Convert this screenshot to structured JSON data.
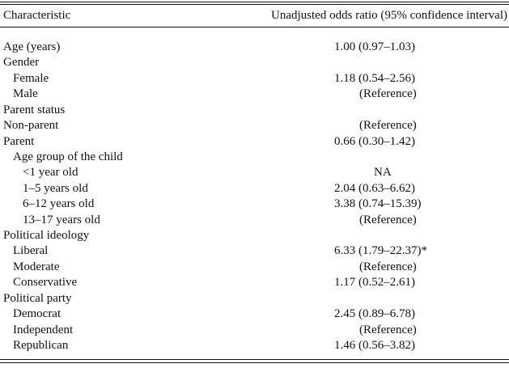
{
  "table": {
    "header": [
      "Characteristic",
      "Unadjusted odds ratio (95% confidence interval)"
    ],
    "rows": [
      [
        "Age (years)",
        "1.00 (0.97–1.03)"
      ],
      [
        "Gender",
        null
      ],
      [
        "Female",
        "1.18 (0.54–2.56)"
      ],
      [
        "Male",
        "(Reference)"
      ],
      [
        "Parent status",
        null
      ],
      [
        "Non-parent",
        "(Reference)"
      ],
      [
        "Parent",
        "0.66 (0.30–1.42)"
      ],
      [
        "Age group of the child",
        null
      ],
      [
        "<1 year old",
        "NA"
      ],
      [
        "1–5 years old",
        "2.04 (0.63–6.62)"
      ],
      [
        "6–12 years old",
        "3.38 (0.74–15.39)"
      ],
      [
        "13–17 years old",
        "(Reference)"
      ],
      [
        "Political ideology",
        null
      ],
      [
        "Liberal",
        "6.33 (1.79–22.37)*"
      ],
      [
        "Moderate",
        "(Reference)"
      ],
      [
        "Conservative",
        "1.17 (0.52–2.61)"
      ],
      [
        "Political party",
        null
      ],
      [
        "Democrat",
        "2.45 (0.89–6.78)"
      ],
      [
        "Independent",
        "(Reference)"
      ],
      [
        "Republican",
        "1.46 (0.56–3.82)"
      ]
    ]
  }
}
